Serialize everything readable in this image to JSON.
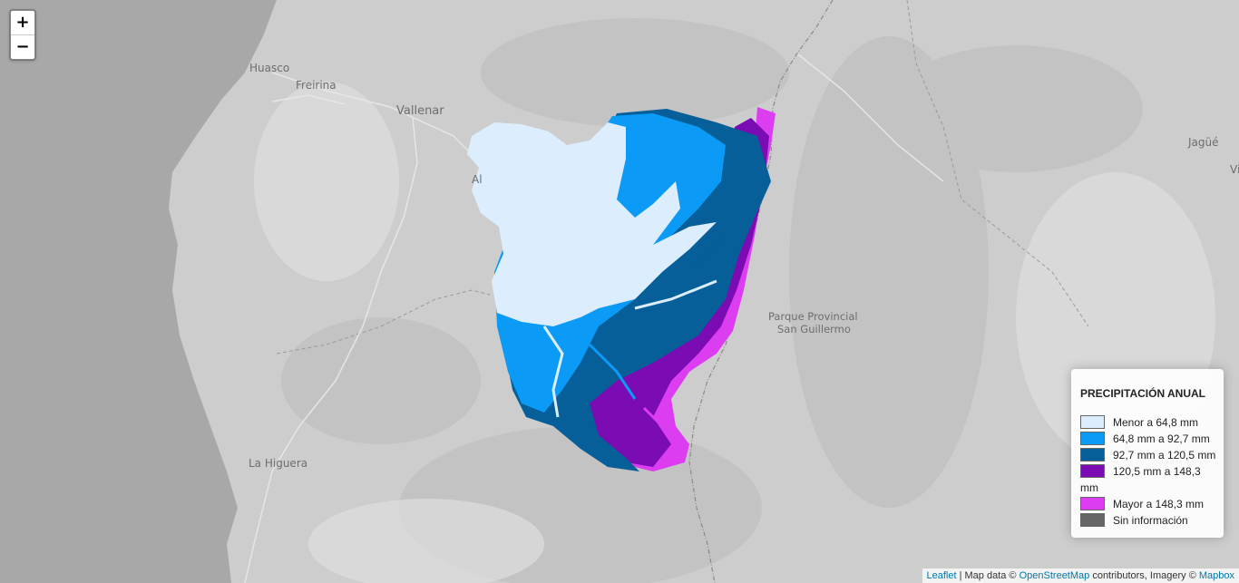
{
  "map": {
    "places": [
      {
        "name": "Huasco"
      },
      {
        "name": "Freirina"
      },
      {
        "name": "Vallenar"
      },
      {
        "name": "Al"
      },
      {
        "name": "La Higuera"
      },
      {
        "name": "Jagüé"
      },
      {
        "name": "Vi"
      }
    ],
    "park": {
      "line1": "Parque Provincial",
      "line2": "San Guillermo"
    }
  },
  "zoom": {
    "in": "+",
    "out": "−"
  },
  "legend": {
    "title": "PRECIPITACIÓN ANUAL",
    "items": [
      {
        "label": "Menor a 64,8 mm",
        "color": "#dceefd"
      },
      {
        "label": "64,8 mm a 92,7 mm",
        "color": "#0b9af5"
      },
      {
        "label": "92,7 mm a 120,5 mm",
        "color": "#065f99"
      },
      {
        "label": "120,5 mm a 148,3 mm",
        "color": "#7b0bb3"
      },
      {
        "label": "Mayor a 148,3 mm",
        "color": "#dc3df0"
      },
      {
        "label": "Sin información",
        "color": "#666666"
      }
    ]
  },
  "attribution": {
    "leaflet": "Leaflet",
    "sep": " | Map data © ",
    "osm": "OpenStreetMap",
    "mid": " contributors, Imagery © ",
    "mapbox": "Mapbox"
  }
}
